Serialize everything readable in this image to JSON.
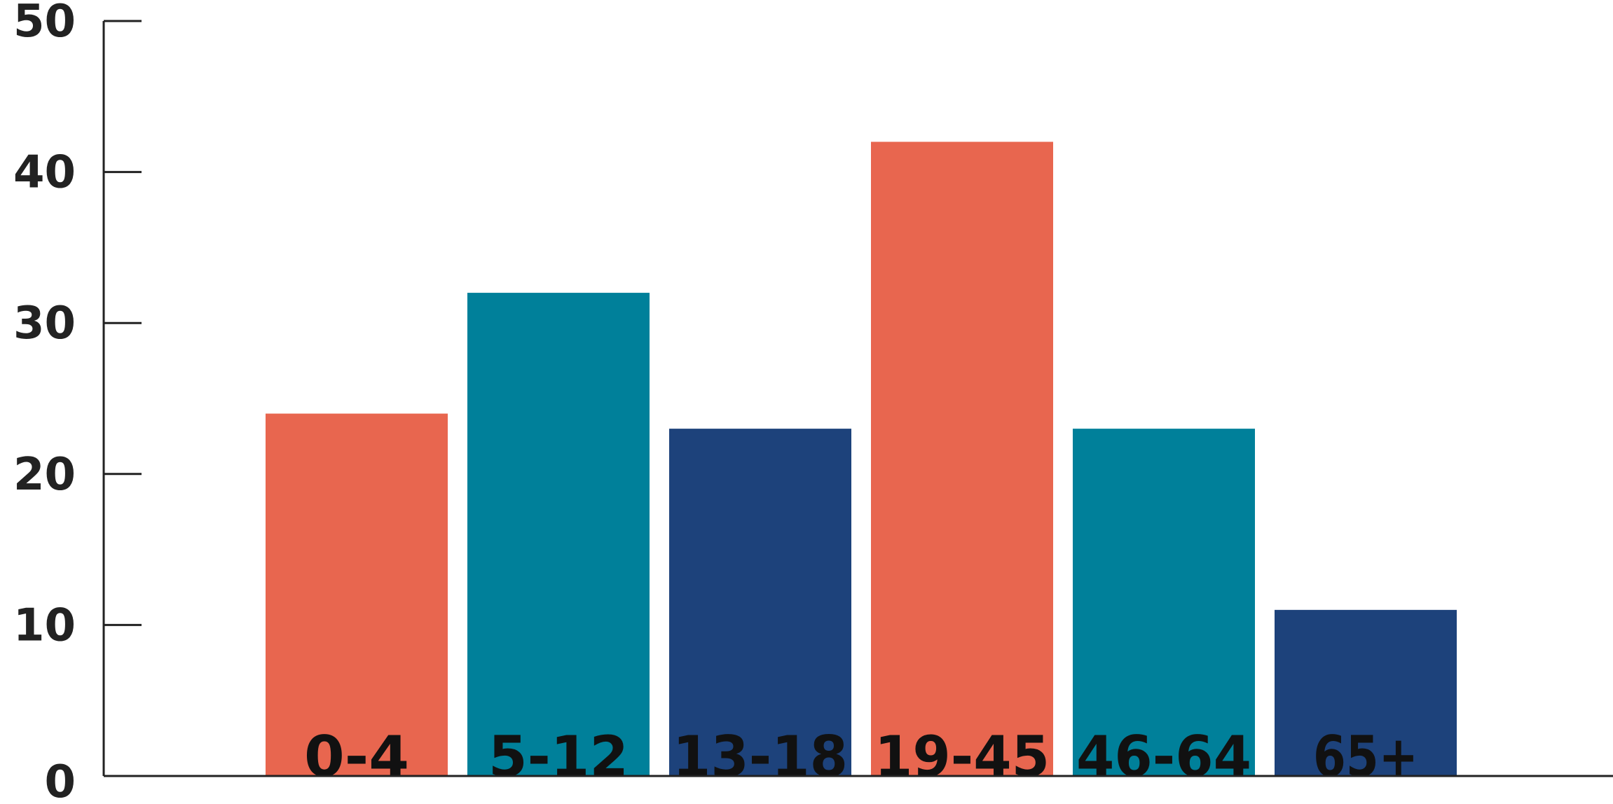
{
  "chart_data": {
    "type": "bar",
    "categories": [
      "0-4",
      "5-12",
      "13-18",
      "19-45",
      "46-64",
      "65+"
    ],
    "values": [
      24,
      32,
      23,
      42,
      23,
      11
    ],
    "bar_colors": [
      "#E8664F",
      "#00809A",
      "#1D427B",
      "#E8664F",
      "#00809A",
      "#1D427B"
    ],
    "ylim": [
      0,
      50
    ],
    "yticks": [
      0,
      10,
      20,
      30,
      40,
      50
    ],
    "title": "",
    "xlabel": "",
    "ylabel": "",
    "grid": false,
    "legend": "none"
  }
}
